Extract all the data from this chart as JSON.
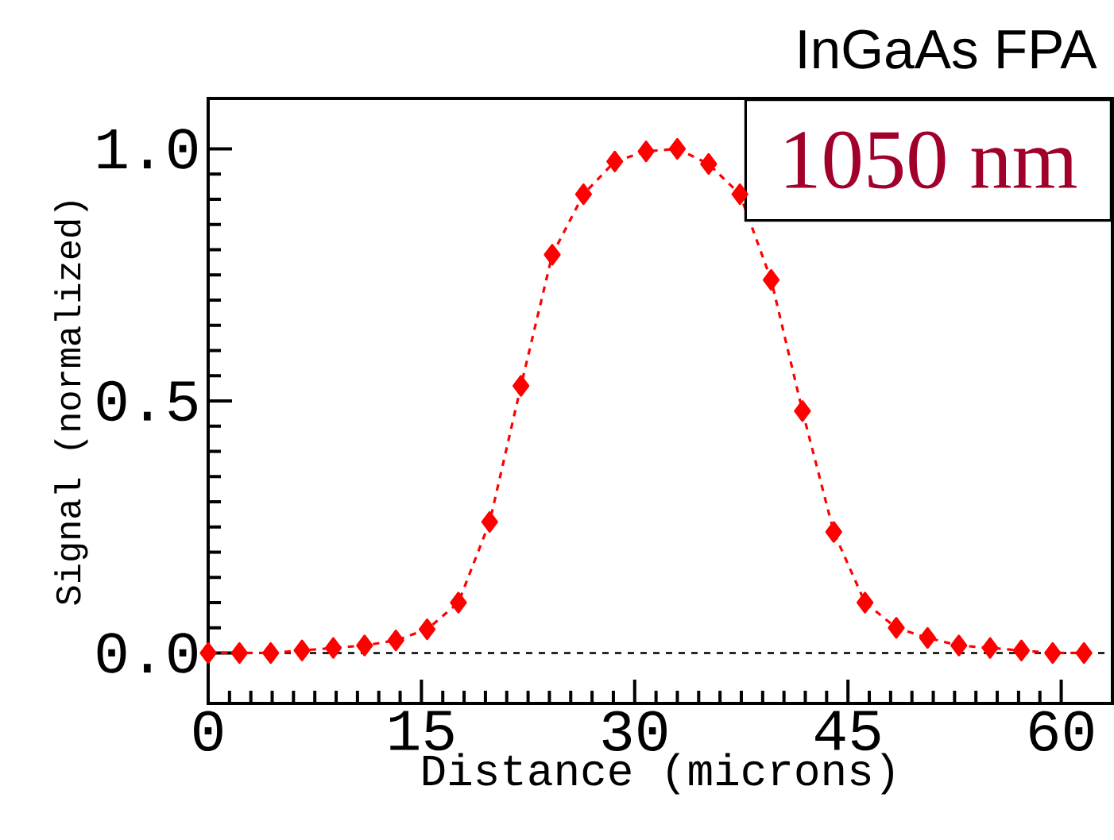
{
  "chart_data": {
    "type": "line",
    "title": "InGaAs FPA",
    "xlabel": "Distance (microns)",
    "ylabel": "Signal (normalized)",
    "annotations": [
      "1050 nm"
    ],
    "x": [
      0,
      2.2,
      4.4,
      6.6,
      8.8,
      11,
      13.2,
      15.4,
      17.6,
      19.8,
      22,
      24.2,
      26.4,
      28.6,
      30.8,
      33,
      35.2,
      37.4,
      39.6,
      41.8,
      44,
      46.2,
      48.4,
      50.6,
      52.8,
      55,
      57.2,
      59.4,
      61.6
    ],
    "series": [
      {
        "color": "#ff0000",
        "values": [
          0,
          0,
          0,
          0.005,
          0.01,
          0.015,
          0.025,
          0.047,
          0.1,
          0.26,
          0.53,
          0.79,
          0.91,
          0.975,
          0.995,
          1.0,
          0.97,
          0.91,
          0.74,
          0.48,
          0.24,
          0.1,
          0.05,
          0.03,
          0.015,
          0.01,
          0.005,
          0,
          0
        ]
      }
    ],
    "xlim": [
      0,
      63.6
    ],
    "ylim": [
      -0.1,
      1.1
    ],
    "xticks": [
      0,
      15,
      30,
      45,
      60
    ],
    "yticks": [
      {
        "value": 0,
        "label": "0.0"
      },
      {
        "value": 0.5,
        "label": "0.5"
      },
      {
        "value": 1,
        "label": "1.0"
      }
    ],
    "ref_lines": [
      {
        "axis": "y",
        "value": 0,
        "color": "#000000",
        "line_style": "dashed"
      }
    ],
    "marker": "diamond",
    "line_style": "dashed"
  }
}
